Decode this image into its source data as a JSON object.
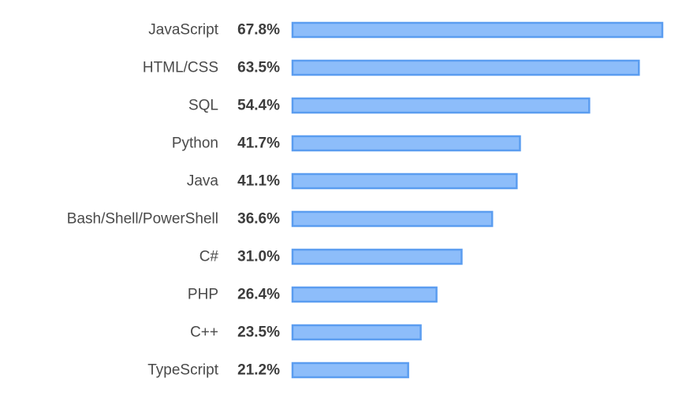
{
  "chart_data": {
    "type": "bar",
    "orientation": "horizontal",
    "categories": [
      "JavaScript",
      "HTML/CSS",
      "SQL",
      "Python",
      "Java",
      "Bash/Shell/PowerShell",
      "C#",
      "PHP",
      "C++",
      "TypeScript"
    ],
    "values": [
      67.8,
      63.5,
      54.4,
      41.7,
      41.1,
      36.6,
      31.0,
      26.4,
      23.5,
      21.2
    ],
    "value_labels": [
      "67.8%",
      "63.5%",
      "54.4%",
      "41.7%",
      "41.1%",
      "36.6%",
      "31.0%",
      "26.4%",
      "23.5%",
      "21.2%"
    ],
    "xlim": [
      0,
      67.8
    ],
    "grid": false,
    "legend": "none",
    "colors": {
      "bar_fill": "#8dbdfa",
      "bar_stroke": "#5b9df0",
      "category_text": "#4a4a4a",
      "value_text": "#3c3c3c"
    }
  }
}
